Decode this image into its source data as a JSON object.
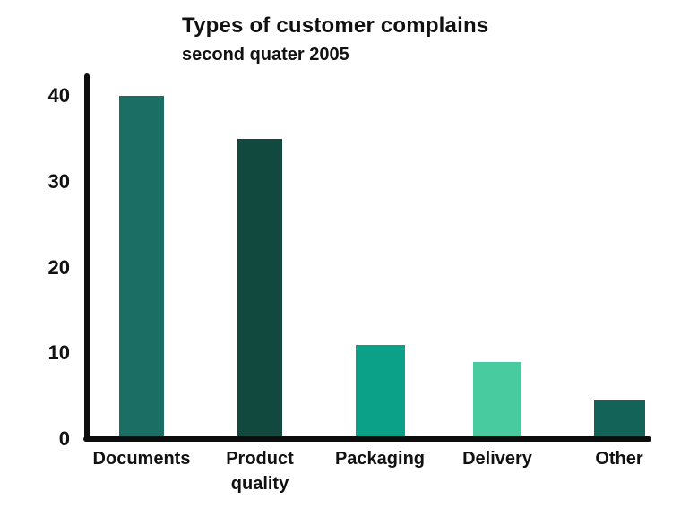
{
  "chart_data": {
    "type": "bar",
    "title": "Types of customer complains",
    "subtitle": "second quater 2005",
    "categories": [
      "Documents",
      "Product quality",
      "Packaging",
      "Delivery",
      "Other"
    ],
    "values": [
      40,
      35,
      11,
      9,
      4.5
    ],
    "bar_colors": [
      "#1a6e63",
      "#12493e",
      "#0ba188",
      "#48cb9e",
      "#136358"
    ],
    "yticks": [
      40,
      30,
      20,
      10,
      0
    ],
    "ylim": [
      0,
      42.8
    ],
    "xlabel": "",
    "ylabel": "",
    "grid": false,
    "legend": false,
    "axis_color": "#0d0d0d",
    "text_color": "#111111",
    "background_color": "#ffffff"
  }
}
